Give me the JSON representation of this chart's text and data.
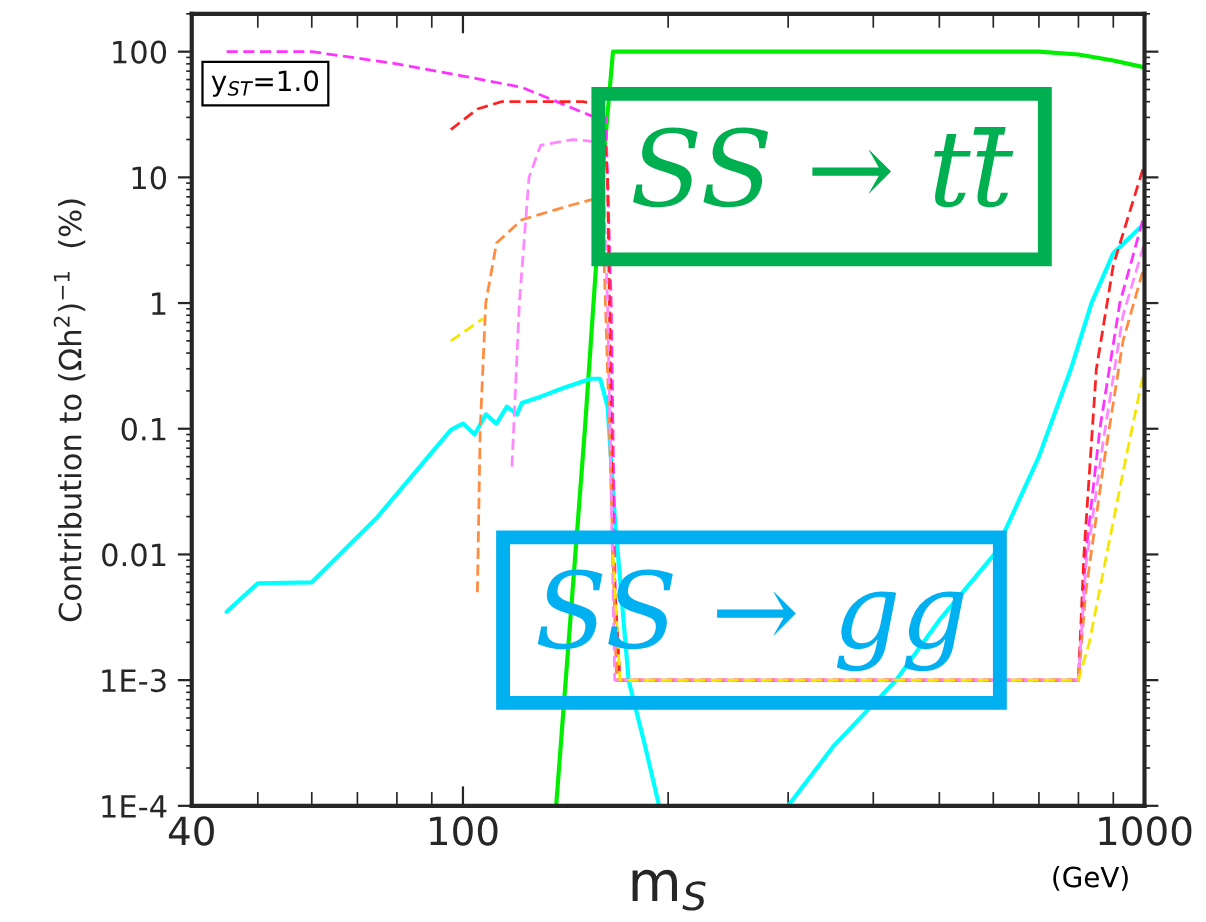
{
  "chart_data": {
    "type": "line",
    "xlabel": "m$_{S}$",
    "ylabel": "Contribution to (Ωh$^{2}$)$^{−1}$  (%)",
    "log": "xy",
    "xlim": [
      40,
      1000
    ],
    "ylim": [
      0.0001,
      200
    ],
    "xticks": [
      40,
      100,
      1000
    ],
    "yticks": [
      {
        "value": 0.0001,
        "label": "1E-4"
      },
      {
        "value": 0.001,
        "label": "1E-3"
      },
      0.01,
      0.1,
      1,
      10,
      100
    ],
    "grid": false,
    "legend": false,
    "annotations": [
      "y$_{ST}$=1.0",
      "SS → tt̄",
      "SS → gg",
      "(GeV)"
    ],
    "series": [
      {
        "color": "#00ee00",
        "line_style": "solid",
        "x": [
          137,
          151,
          160,
          166,
          200,
          400,
          700,
          800,
          900,
          1000
        ],
        "values": [
          0.0001,
          0.1,
          10,
          100,
          100,
          100,
          100,
          95,
          85,
          75
        ]
      },
      {
        "color": "#00ffff",
        "line_style": "solid",
        "x": [
          45,
          50,
          60,
          75,
          88,
          96,
          100,
          104,
          108,
          112,
          116,
          120,
          122,
          130,
          140,
          154,
          159,
          163,
          167,
          175,
          185,
          194,
          250,
          300,
          350,
          432,
          500,
          602,
          700,
          780,
          836,
          900,
          1000
        ],
        "values": [
          0.0035,
          0.0059,
          0.006,
          0.02,
          0.056,
          0.098,
          0.11,
          0.09,
          0.13,
          0.11,
          0.15,
          0.13,
          0.16,
          0.18,
          0.21,
          0.25,
          0.25,
          0.15,
          0.02,
          0.001,
          0.0003,
          0.0001,
          null,
          0.0001,
          0.0003,
          0.001,
          0.003,
          0.01,
          0.06,
          0.3,
          1,
          2.5,
          4.3
        ]
      },
      {
        "color": "#ff33ff",
        "line_style": "dashed",
        "x": [
          45,
          60,
          80,
          100,
          122,
          154,
          162,
          165,
          168,
          800,
          820,
          860,
          920,
          1000
        ],
        "values": [
          100,
          100,
          80,
          64,
          52,
          31,
          30,
          1,
          0.001,
          0.001,
          0.01,
          0.1,
          1,
          5.1
        ]
      },
      {
        "color": "#ff2222",
        "line_style": "dashed",
        "x": [
          96,
          105,
          114,
          150,
          160,
          163,
          166,
          170,
          800,
          815,
          850,
          900,
          1000
        ],
        "values": [
          24,
          35,
          40,
          40,
          38,
          10,
          0.01,
          0.001,
          0.001,
          0.01,
          0.3,
          2,
          12.8
        ]
      },
      {
        "color": "#ff8c40",
        "line_style": "dashed",
        "x": [
          105,
          106,
          108,
          112,
          122,
          144,
          160,
          164,
          168,
          800,
          820,
          870,
          930,
          1000
        ],
        "values": [
          0.005,
          0.1,
          1,
          3,
          4.6,
          6,
          7,
          0.1,
          0.001,
          0.001,
          0.005,
          0.05,
          0.5,
          2.0
        ]
      },
      {
        "color": "#ff88ff",
        "line_style": "dashed",
        "x": [
          118,
          121,
          125,
          130,
          145,
          160,
          163,
          167,
          800,
          820,
          870,
          930,
          1000
        ],
        "values": [
          0.05,
          1,
          10,
          18,
          20,
          19,
          1,
          0.001,
          0.001,
          0.008,
          0.08,
          0.8,
          3
        ]
      },
      {
        "color": "#f5e600",
        "line_style": "dashed",
        "x": [
          96,
          107,
          130,
          166,
          170,
          800,
          830,
          880,
          940,
          1000
        ],
        "values": [
          0.5,
          0.75,
          null,
          0.01,
          0.001,
          0.001,
          0.002,
          0.01,
          0.06,
          0.3
        ]
      }
    ]
  }
}
